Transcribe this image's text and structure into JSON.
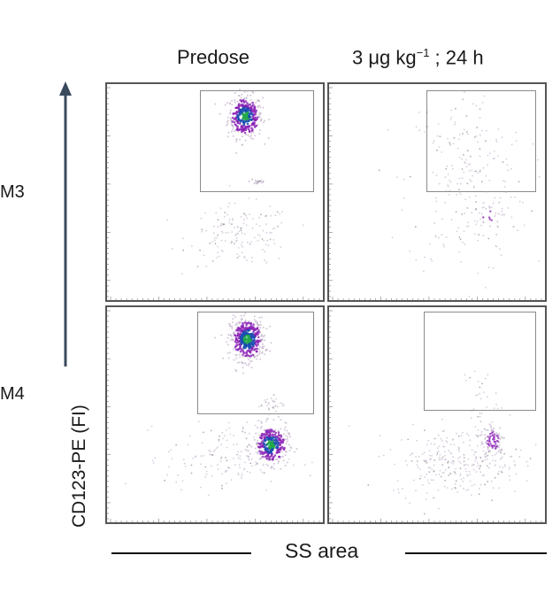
{
  "column_titles": [
    {
      "main": "Predose"
    },
    {
      "main": "3 μg kg",
      "sup": "−1",
      "tail": " ; 24 h"
    }
  ],
  "row_labels": [
    "M3",
    "M4"
  ],
  "axis": {
    "y_label": "CD123-PE (FI)",
    "x_label": "SS area"
  },
  "colors": {
    "sparse": "#b8a4c2",
    "dense": "#8a1fb5",
    "core": "#1a4db0",
    "peak": "#21a84a",
    "frame": "#555555"
  },
  "chart_data": {
    "type": "scatter",
    "note_units": "normalized side scatter (x) and CD123 fluorescence (y), 0-1",
    "xlim": [
      0,
      1
    ],
    "ylim": [
      0,
      1
    ],
    "panels": [
      {
        "row": "M3",
        "column": "Predose",
        "gate": {
          "x": [
            0.43,
            0.96
          ],
          "y": [
            0.5,
            0.97
          ]
        },
        "populations": [
          {
            "name": "",
            "cx": 0.64,
            "cy": 0.85,
            "sx": 0.04,
            "sy": 0.05,
            "n": 340,
            "density": "high"
          },
          {
            "name": "",
            "cx": 0.7,
            "cy": 0.55,
            "sx": 0.02,
            "sy": 0.01,
            "n": 25,
            "density": "low"
          },
          {
            "name": "",
            "cx": 0.62,
            "cy": 0.3,
            "sx": 0.12,
            "sy": 0.07,
            "n": 150,
            "density": "low"
          }
        ]
      },
      {
        "row": "M3",
        "column": "3 μg kg−1 ; 24 h",
        "gate": {
          "x": [
            0.45,
            0.96
          ],
          "y": [
            0.5,
            0.97
          ]
        },
        "populations": [
          {
            "name": "",
            "cx": 0.64,
            "cy": 0.55,
            "sx": 0.14,
            "sy": 0.22,
            "n": 240,
            "density": "low"
          },
          {
            "name": "",
            "cx": 0.74,
            "cy": 0.38,
            "sx": 0.03,
            "sy": 0.04,
            "n": 20,
            "density": "mid"
          }
        ]
      },
      {
        "row": "M4",
        "column": "Predose",
        "gate": {
          "x": [
            0.42,
            0.96
          ],
          "y": [
            0.5,
            0.98
          ]
        },
        "populations": [
          {
            "name": "",
            "cx": 0.65,
            "cy": 0.85,
            "sx": 0.04,
            "sy": 0.05,
            "n": 420,
            "density": "high"
          },
          {
            "name": "",
            "cx": 0.76,
            "cy": 0.36,
            "sx": 0.04,
            "sy": 0.045,
            "n": 300,
            "density": "high"
          },
          {
            "name": "",
            "cx": 0.55,
            "cy": 0.3,
            "sx": 0.14,
            "sy": 0.08,
            "n": 160,
            "density": "low"
          },
          {
            "name": "",
            "cx": 0.76,
            "cy": 0.55,
            "sx": 0.03,
            "sy": 0.02,
            "n": 30,
            "density": "low"
          }
        ]
      },
      {
        "row": "M4",
        "column": "3 μg kg−1 ; 24 h",
        "gate": {
          "x": [
            0.44,
            0.96
          ],
          "y": [
            0.52,
            0.98
          ]
        },
        "populations": [
          {
            "name": "",
            "cx": 0.76,
            "cy": 0.38,
            "sx": 0.03,
            "sy": 0.045,
            "n": 90,
            "density": "mid"
          },
          {
            "name": "",
            "cx": 0.6,
            "cy": 0.28,
            "sx": 0.15,
            "sy": 0.08,
            "n": 280,
            "density": "low"
          },
          {
            "name": "",
            "cx": 0.7,
            "cy": 0.58,
            "sx": 0.04,
            "sy": 0.08,
            "n": 30,
            "density": "low"
          }
        ]
      }
    ]
  }
}
